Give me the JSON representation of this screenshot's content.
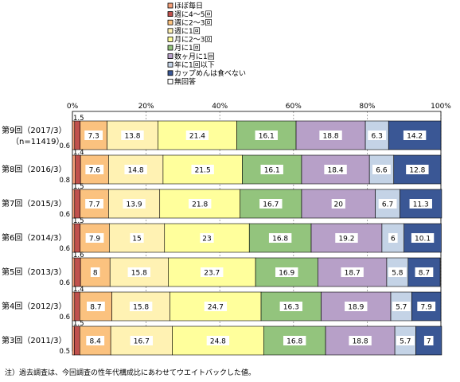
{
  "chart_data": {
    "type": "bar",
    "orientation": "horizontal",
    "stacked": "percent",
    "xlim": [
      0,
      100
    ],
    "grid": true,
    "legend_position": "top-center",
    "x_ticks": [
      "0%",
      "20%",
      "40%",
      "60%",
      "80%",
      "100%"
    ],
    "categories": [
      {
        "label": "第9回（2017/3）",
        "sublabel": "（n=11419）"
      },
      {
        "label": "第8回（2016/3）",
        "sublabel": ""
      },
      {
        "label": "第7回（2015/3）",
        "sublabel": ""
      },
      {
        "label": "第6回（2014/3）",
        "sublabel": ""
      },
      {
        "label": "第5回（2013/3）",
        "sublabel": ""
      },
      {
        "label": "第4回（2012/3）",
        "sublabel": ""
      },
      {
        "label": "第3回（2011/3）",
        "sublabel": ""
      }
    ],
    "series": [
      {
        "name": "ほぼ毎日",
        "color": "#f4a07a",
        "values": [
          0.6,
          0.8,
          0.6,
          0.6,
          0.6,
          0.6,
          0.5
        ]
      },
      {
        "name": "週に4～5回",
        "color": "#c0504d",
        "values": [
          1.5,
          1.4,
          1.5,
          1.5,
          1.6,
          1.4,
          1.5
        ]
      },
      {
        "name": "週に2～3回",
        "color": "#fbc27f",
        "values": [
          7.3,
          7.6,
          7.7,
          7.9,
          8.0,
          8.7,
          8.4
        ]
      },
      {
        "name": "週に1回",
        "color": "#fff2b3",
        "values": [
          13.8,
          14.8,
          13.9,
          15.0,
          15.8,
          15.8,
          16.7
        ]
      },
      {
        "name": "月に2～3回",
        "color": "#ffff9c",
        "values": [
          21.4,
          21.5,
          21.8,
          23.0,
          23.7,
          24.7,
          24.8
        ]
      },
      {
        "name": "月に1回",
        "color": "#93c47d",
        "values": [
          16.1,
          16.1,
          16.7,
          16.8,
          16.9,
          16.3,
          16.8
        ]
      },
      {
        "name": "数ヶ月に1回",
        "color": "#b7a0c8",
        "values": [
          18.8,
          18.4,
          20.0,
          19.2,
          18.7,
          18.9,
          18.8
        ]
      },
      {
        "name": "年に1回以下",
        "color": "#c4d3e6",
        "values": [
          6.3,
          6.6,
          6.7,
          6.0,
          5.8,
          5.7,
          5.7
        ]
      },
      {
        "name": "カップめんは食べない",
        "color": "#3a5795",
        "values": [
          14.2,
          12.8,
          11.3,
          10.1,
          8.7,
          7.9,
          7.0
        ]
      },
      {
        "name": "無回答",
        "color": "#ffffff",
        "values": [
          0,
          0,
          0,
          0,
          0,
          0,
          0
        ]
      }
    ]
  },
  "note": "注）過去調査は、今回調査の性年代構成比にあわせてウエイトバックした値。"
}
